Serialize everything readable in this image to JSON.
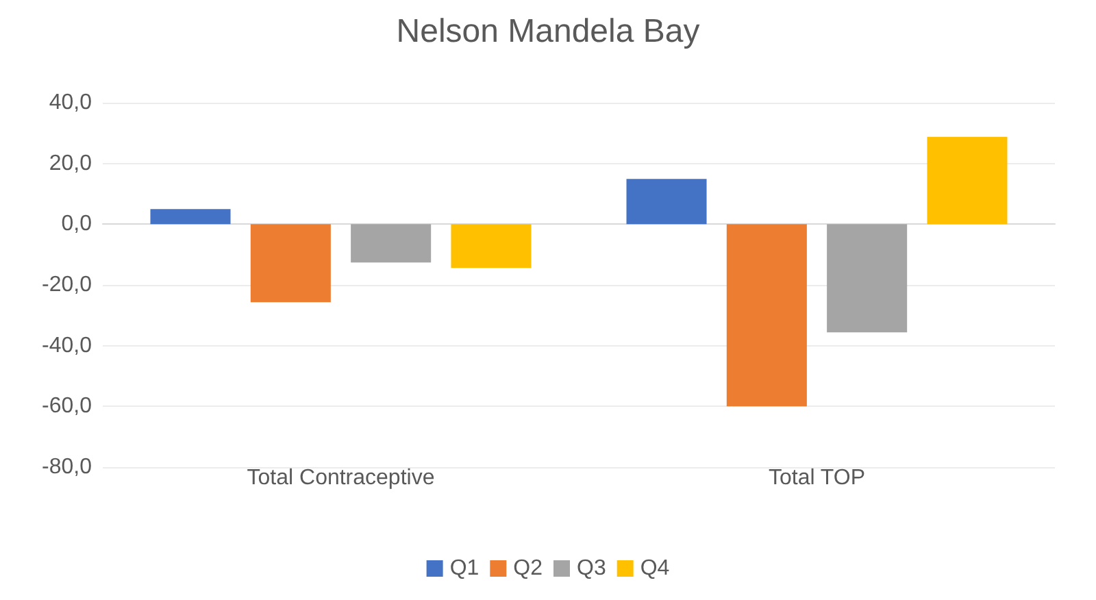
{
  "chart_data": {
    "type": "bar",
    "title": "Nelson Mandela Bay",
    "categories": [
      "Total Contraceptive",
      "Total TOP"
    ],
    "series": [
      {
        "name": "Q1",
        "color": "#4472c4",
        "values": [
          5.0,
          14.9
        ]
      },
      {
        "name": "Q2",
        "color": "#ed7d31",
        "values": [
          -25.7,
          -60.0
        ]
      },
      {
        "name": "Q3",
        "color": "#a5a5a5",
        "values": [
          -12.6,
          -35.6
        ]
      },
      {
        "name": "Q4",
        "color": "#ffc000",
        "values": [
          -14.4,
          28.8
        ]
      }
    ],
    "ylim": [
      -80,
      40
    ],
    "yticks": [
      {
        "value": -80,
        "label": "-80,0"
      },
      {
        "value": -60,
        "label": "-60,0"
      },
      {
        "value": -40,
        "label": "-40,0"
      },
      {
        "value": -20,
        "label": "-20,0"
      },
      {
        "value": 0,
        "label": "0,0"
      },
      {
        "value": 20,
        "label": "20,0"
      },
      {
        "value": 40,
        "label": "40,0"
      }
    ],
    "grid": true,
    "legend": "bottom"
  }
}
